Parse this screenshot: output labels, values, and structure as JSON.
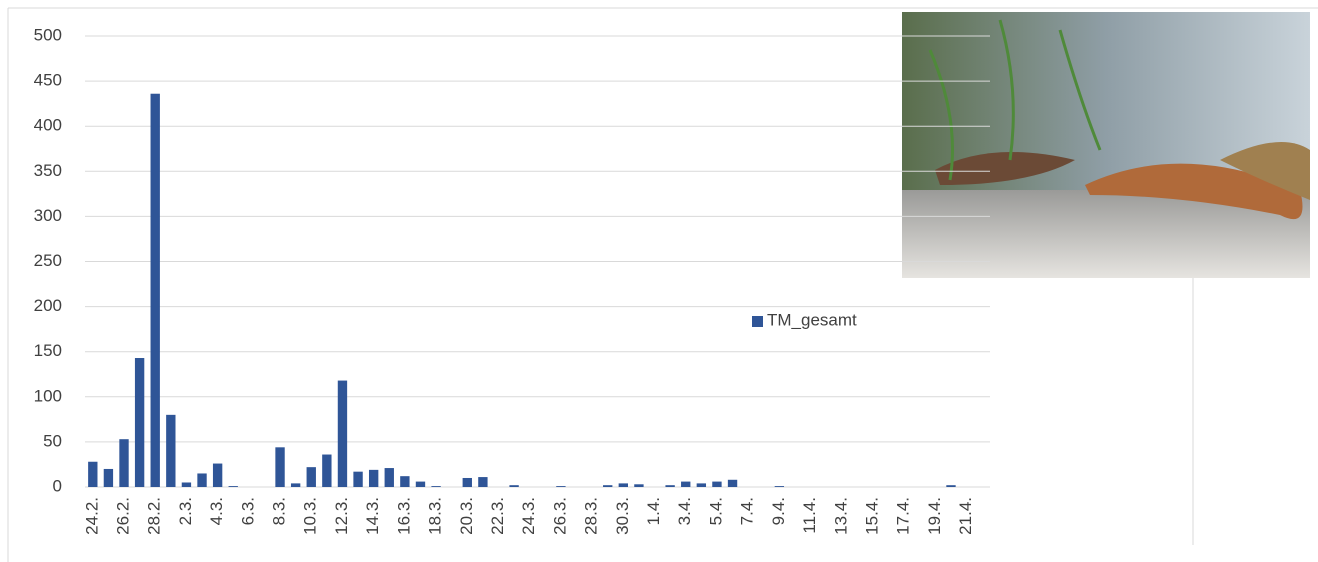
{
  "chart_data": {
    "type": "bar",
    "categories": [
      "24.2.",
      null,
      "26.2.",
      null,
      "28.2.",
      null,
      "2.3.",
      null,
      "4.3.",
      null,
      "6.3.",
      null,
      "8.3.",
      null,
      "10.3.",
      null,
      "12.3.",
      null,
      "14.3.",
      null,
      "16.3.",
      null,
      "18.3.",
      null,
      "20.3.",
      null,
      "22.3.",
      null,
      "24.3.",
      null,
      "26.3.",
      null,
      "28.3.",
      null,
      "30.3.",
      null,
      "1.4.",
      null,
      "3.4.",
      null,
      "5.4.",
      null,
      "7.4.",
      null,
      "9.4.",
      null,
      "11.4.",
      null,
      "13.4.",
      null,
      "15.4.",
      null,
      "17.4.",
      null,
      "19.4.",
      null,
      "21.4.",
      null
    ],
    "series": [
      {
        "name": "TM_gesamt",
        "color": "#2f5597",
        "values": [
          28,
          20,
          53,
          143,
          436,
          80,
          5,
          15,
          26,
          1,
          0,
          0,
          44,
          4,
          22,
          36,
          118,
          17,
          19,
          21,
          12,
          6,
          1,
          0,
          10,
          11,
          0,
          2,
          0,
          0,
          1,
          0,
          0,
          2,
          4,
          3,
          0,
          2,
          6,
          4,
          6,
          8,
          0,
          0,
          1,
          0,
          0,
          0,
          0,
          0,
          0,
          0,
          0,
          0,
          0,
          2,
          0,
          0
        ]
      }
    ],
    "ylim": [
      0,
      500
    ],
    "yticks": [
      0,
      50,
      100,
      150,
      200,
      250,
      300,
      350,
      400,
      450,
      500
    ],
    "grid": true,
    "legend": "right"
  }
}
